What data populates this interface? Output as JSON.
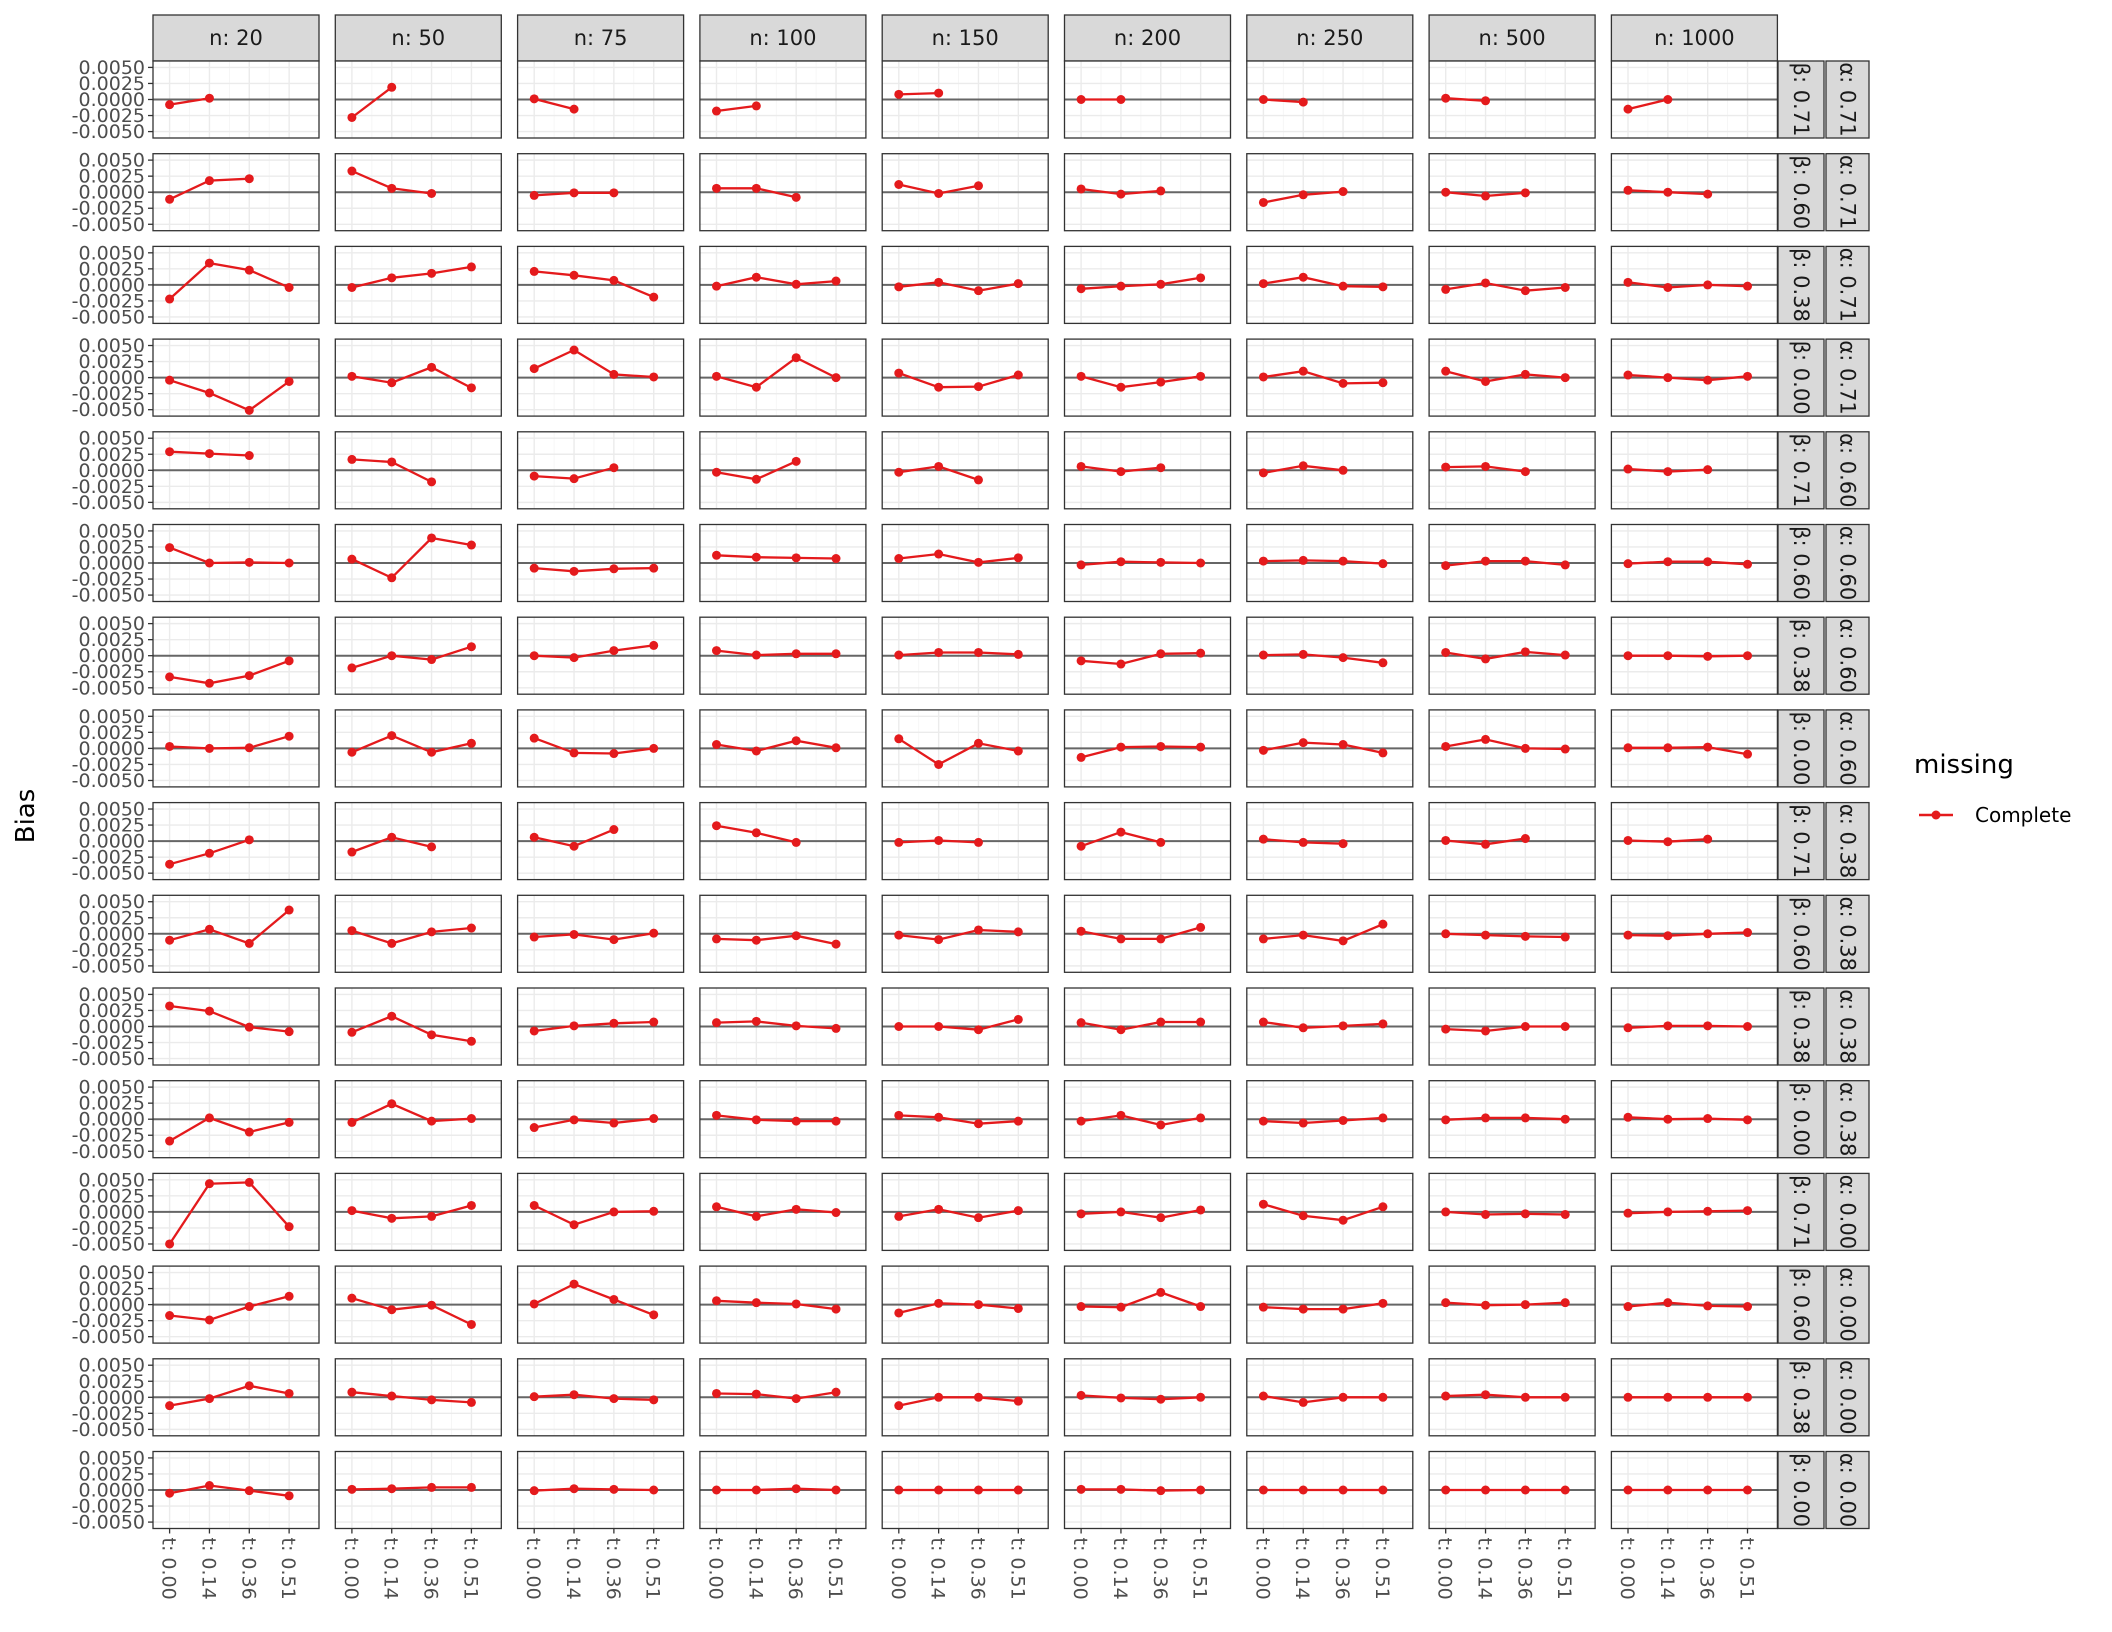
{
  "chart_data": {
    "type": "line",
    "ylabel": "Bias",
    "xlabel": "",
    "ylim": [
      -0.006,
      0.006
    ],
    "y_ticks": [
      "0.0050",
      "0.0025",
      "0.0000",
      "-0.0025",
      "-0.0050"
    ],
    "y_tick_values": [
      0.005,
      0.0025,
      0.0,
      -0.0025,
      -0.005
    ],
    "x_ticks": [
      "t: 0.00",
      "t: 0.14",
      "t: 0.36",
      "t: 0.51"
    ],
    "column_facets": [
      "n: 20",
      "n: 50",
      "n: 75",
      "n: 100",
      "n: 150",
      "n: 200",
      "n: 250",
      "n: 500",
      "n: 1000"
    ],
    "row_facets_beta": [
      "β: 0.71",
      "β: 0.60",
      "β: 0.38",
      "β: 0.00",
      "β: 0.71",
      "β: 0.60",
      "β: 0.38",
      "β: 0.00",
      "β: 0.71",
      "β: 0.60",
      "β: 0.38",
      "β: 0.00",
      "β: 0.71",
      "β: 0.60",
      "β: 0.38",
      "β: 0.00"
    ],
    "row_facets_alpha": [
      "α: 0.71",
      "α: 0.71",
      "α: 0.71",
      "α: 0.71",
      "α: 0.60",
      "α: 0.60",
      "α: 0.60",
      "α: 0.60",
      "α: 0.38",
      "α: 0.38",
      "α: 0.38",
      "α: 0.38",
      "α: 0.00",
      "α: 0.00",
      "α: 0.00",
      "α: 0.00"
    ],
    "legend": {
      "title": "missing",
      "entries": [
        "Complete"
      ],
      "position": "right"
    },
    "series_color": "#e41a1c",
    "grid": true,
    "panels": [
      [
        [
          -0.0008,
          0.0002
        ],
        [
          -0.0028,
          0.0019
        ],
        [
          0.0001,
          -0.0015
        ],
        [
          -0.0018,
          -0.001
        ],
        [
          0.0008,
          0.001
        ],
        [
          0.0,
          0.0
        ],
        [
          0.0,
          -0.0004
        ],
        [
          0.0002,
          -0.0002
        ],
        [
          -0.0015,
          0.0
        ]
      ],
      [
        [
          -0.0011,
          0.0018,
          0.0021
        ],
        [
          0.0033,
          0.0006,
          -0.0002
        ],
        [
          -0.0005,
          -0.0001,
          -0.0001
        ],
        [
          0.0006,
          0.0006,
          -0.0008
        ],
        [
          0.0012,
          -0.0002,
          0.001
        ],
        [
          0.0005,
          -0.0003,
          0.0002
        ],
        [
          -0.0016,
          -0.0004,
          0.0001
        ],
        [
          0.0,
          -0.0006,
          -0.0001
        ],
        [
          0.0003,
          0.0,
          -0.0003
        ]
      ],
      [
        [
          -0.0022,
          0.0034,
          0.0023,
          -0.0004
        ],
        [
          -0.0004,
          0.0011,
          0.0018,
          0.0028
        ],
        [
          0.0021,
          0.0015,
          0.0007,
          -0.0019
        ],
        [
          -0.0002,
          0.0012,
          0.0001,
          0.0006
        ],
        [
          -0.0003,
          0.0004,
          -0.0009,
          0.0002
        ],
        [
          -0.0006,
          -0.0002,
          0.0001,
          0.0011
        ],
        [
          0.0002,
          0.0012,
          -0.0002,
          -0.0003
        ],
        [
          -0.0007,
          0.0003,
          -0.0009,
          -0.0004
        ],
        [
          0.0004,
          -0.0004,
          0.0,
          -0.0002
        ]
      ],
      [
        [
          -0.0004,
          -0.0024,
          -0.0051,
          -0.0006
        ],
        [
          0.0002,
          -0.0008,
          0.0016,
          -0.0016
        ],
        [
          0.0014,
          0.0043,
          0.0005,
          0.0001
        ],
        [
          0.0002,
          -0.0015,
          0.0031,
          0.0
        ],
        [
          0.0007,
          -0.0015,
          -0.0014,
          0.0004
        ],
        [
          0.0002,
          -0.0015,
          -0.0007,
          0.0002
        ],
        [
          0.0001,
          0.001,
          -0.0009,
          -0.0008
        ],
        [
          0.001,
          -0.0006,
          0.0005,
          0.0
        ],
        [
          0.0004,
          0.0,
          -0.0004,
          0.0002
        ]
      ],
      [
        [
          0.0029,
          0.0026,
          0.0023
        ],
        [
          0.0017,
          0.0013,
          -0.0018
        ],
        [
          -0.0009,
          -0.0013,
          0.0004
        ],
        [
          -0.0003,
          -0.0014,
          0.0014
        ],
        [
          -0.0003,
          0.0006,
          -0.0015
        ],
        [
          0.0006,
          -0.0002,
          0.0004
        ],
        [
          -0.0004,
          0.0007,
          0.0
        ],
        [
          0.0005,
          0.0006,
          -0.0002
        ],
        [
          0.0002,
          -0.0002,
          0.0001
        ]
      ],
      [
        [
          0.0024,
          0.0,
          0.0001,
          0.0
        ],
        [
          0.0006,
          -0.0023,
          0.0039,
          0.0028
        ],
        [
          -0.0008,
          -0.0013,
          -0.0009,
          -0.0008
        ],
        [
          0.0012,
          0.0009,
          0.0008,
          0.0007
        ],
        [
          0.0007,
          0.0014,
          0.0001,
          0.0008
        ],
        [
          -0.0003,
          0.0002,
          0.0001,
          0.0
        ],
        [
          0.0003,
          0.0004,
          0.0003,
          -0.0001
        ],
        [
          -0.0004,
          0.0003,
          0.0003,
          -0.0003
        ],
        [
          -0.0001,
          0.0002,
          0.0002,
          -0.0002
        ]
      ],
      [
        [
          -0.0033,
          -0.0043,
          -0.0031,
          -0.0008
        ],
        [
          -0.0019,
          0.0,
          -0.0006,
          0.0014
        ],
        [
          0.0,
          -0.0003,
          0.0008,
          0.0016
        ],
        [
          0.0008,
          0.0001,
          0.0003,
          0.0003
        ],
        [
          0.0001,
          0.0005,
          0.0005,
          0.0002
        ],
        [
          -0.0008,
          -0.0013,
          0.0003,
          0.0004
        ],
        [
          0.0001,
          0.0002,
          -0.0003,
          -0.0011
        ],
        [
          0.0005,
          -0.0005,
          0.0006,
          0.0001
        ],
        [
          0.0,
          0.0,
          -0.0001,
          0.0
        ]
      ],
      [
        [
          0.0003,
          0.0,
          0.0001,
          0.0019
        ],
        [
          -0.0006,
          0.002,
          -0.0006,
          0.0008
        ],
        [
          0.0016,
          -0.0007,
          -0.0008,
          0.0
        ],
        [
          0.0006,
          -0.0004,
          0.0012,
          0.0001
        ],
        [
          0.0015,
          -0.0025,
          0.0008,
          -0.0004
        ],
        [
          -0.0014,
          0.0002,
          0.0003,
          0.0002
        ],
        [
          -0.0003,
          0.0009,
          0.0006,
          -0.0007
        ],
        [
          0.0003,
          0.0014,
          0.0,
          -0.0001
        ],
        [
          0.0001,
          0.0001,
          0.0002,
          -0.0009
        ]
      ],
      [
        [
          -0.0036,
          -0.0019,
          0.0002
        ],
        [
          -0.0017,
          0.0006,
          -0.0009
        ],
        [
          0.0006,
          -0.0008,
          0.0018
        ],
        [
          0.0024,
          0.0013,
          -0.0002
        ],
        [
          -0.0002,
          0.0001,
          -0.0002
        ],
        [
          -0.0008,
          0.0014,
          -0.0002
        ],
        [
          0.0003,
          -0.0002,
          -0.0004
        ],
        [
          0.0001,
          -0.0005,
          0.0004
        ],
        [
          0.0001,
          -0.0001,
          0.0003
        ]
      ],
      [
        [
          -0.001,
          0.0007,
          -0.0015,
          0.0037
        ],
        [
          0.0005,
          -0.0015,
          0.0003,
          0.0009
        ],
        [
          -0.0005,
          -0.0001,
          -0.0009,
          0.0001
        ],
        [
          -0.0008,
          -0.001,
          -0.0003,
          -0.0016
        ],
        [
          -0.0002,
          -0.0009,
          0.0006,
          0.0003
        ],
        [
          0.0004,
          -0.0008,
          -0.0008,
          0.001
        ],
        [
          -0.0008,
          -0.0002,
          -0.0011,
          0.0015
        ],
        [
          0.0,
          -0.0002,
          -0.0004,
          -0.0005
        ],
        [
          -0.0002,
          -0.0003,
          0.0,
          0.0002
        ]
      ],
      [
        [
          0.0032,
          0.0024,
          -0.0001,
          -0.0008
        ],
        [
          -0.0009,
          0.0016,
          -0.0013,
          -0.0023
        ],
        [
          -0.0007,
          0.0001,
          0.0005,
          0.0007
        ],
        [
          0.0006,
          0.0008,
          0.0001,
          -0.0003
        ],
        [
          0.0,
          0.0,
          -0.0005,
          0.0011
        ],
        [
          0.0006,
          -0.0005,
          0.0007,
          0.0007
        ],
        [
          0.0007,
          -0.0002,
          0.0001,
          0.0004
        ],
        [
          -0.0004,
          -0.0007,
          0.0,
          0.0
        ],
        [
          -0.0002,
          0.0001,
          0.0001,
          0.0
        ]
      ],
      [
        [
          -0.0034,
          0.0002,
          -0.002,
          -0.0005
        ],
        [
          -0.0005,
          0.0024,
          -0.0003,
          0.0001
        ],
        [
          -0.0013,
          -0.0001,
          -0.0006,
          0.0001
        ],
        [
          0.0006,
          -0.0001,
          -0.0003,
          -0.0003
        ],
        [
          0.0006,
          0.0003,
          -0.0007,
          -0.0003
        ],
        [
          -0.0003,
          0.0006,
          -0.0009,
          0.0002
        ],
        [
          -0.0003,
          -0.0006,
          -0.0002,
          0.0002
        ],
        [
          -0.0001,
          0.0002,
          0.0002,
          0.0
        ],
        [
          0.0003,
          0.0,
          0.0001,
          -0.0001
        ]
      ],
      [
        [
          -0.005,
          0.0044,
          0.0046,
          -0.0023
        ],
        [
          0.0002,
          -0.001,
          -0.0007,
          0.001
        ],
        [
          0.001,
          -0.002,
          0.0,
          0.0001
        ],
        [
          0.0008,
          -0.0007,
          0.0004,
          -0.0001
        ],
        [
          -0.0007,
          0.0004,
          -0.0009,
          0.0002
        ],
        [
          -0.0003,
          0.0,
          -0.0009,
          0.0003
        ],
        [
          0.0012,
          -0.0006,
          -0.0013,
          0.0008
        ],
        [
          0.0,
          -0.0004,
          -0.0003,
          -0.0004
        ],
        [
          -0.0002,
          0.0,
          0.0001,
          0.0002
        ]
      ],
      [
        [
          -0.0017,
          -0.0024,
          -0.0003,
          0.0013
        ],
        [
          0.001,
          -0.0008,
          -0.0001,
          -0.0031
        ],
        [
          0.0001,
          0.0032,
          0.0008,
          -0.0016
        ],
        [
          0.0006,
          0.0003,
          0.0001,
          -0.0007
        ],
        [
          -0.0013,
          0.0002,
          0.0,
          -0.0006
        ],
        [
          -0.0003,
          -0.0004,
          0.0019,
          -0.0003
        ],
        [
          -0.0004,
          -0.0007,
          -0.0007,
          0.0002
        ],
        [
          0.0003,
          -0.0001,
          0.0,
          0.0003
        ],
        [
          -0.0003,
          0.0003,
          -0.0002,
          -0.0003
        ]
      ],
      [
        [
          -0.0013,
          -0.0002,
          0.0018,
          0.0006
        ],
        [
          0.0008,
          0.0002,
          -0.0004,
          -0.0008
        ],
        [
          0.0001,
          0.0004,
          -0.0002,
          -0.0004
        ],
        [
          0.0006,
          0.0005,
          -0.0002,
          0.0008
        ],
        [
          -0.0013,
          0.0,
          0.0,
          -0.0006
        ],
        [
          0.0003,
          -0.0001,
          -0.0003,
          0.0
        ],
        [
          0.0002,
          -0.0008,
          0.0,
          0.0
        ],
        [
          0.0002,
          0.0004,
          0.0,
          0.0
        ],
        [
          0.0,
          0.0,
          0.0,
          0.0
        ]
      ],
      [
        [
          -0.0005,
          0.0007,
          -0.0001,
          -0.0009
        ],
        [
          0.0001,
          0.0002,
          0.0004,
          0.0004
        ],
        [
          -0.0001,
          0.0002,
          0.0001,
          0.0
        ],
        [
          0.0,
          0.0,
          0.0002,
          0.0
        ],
        [
          0.0,
          0.0,
          0.0,
          0.0
        ],
        [
          0.0001,
          0.0001,
          -0.0001,
          0.0
        ],
        [
          0.0,
          0.0,
          0.0,
          0.0
        ],
        [
          0.0,
          0.0,
          0.0,
          0.0
        ],
        [
          0.0,
          0.0,
          0.0,
          0.0
        ]
      ]
    ]
  }
}
